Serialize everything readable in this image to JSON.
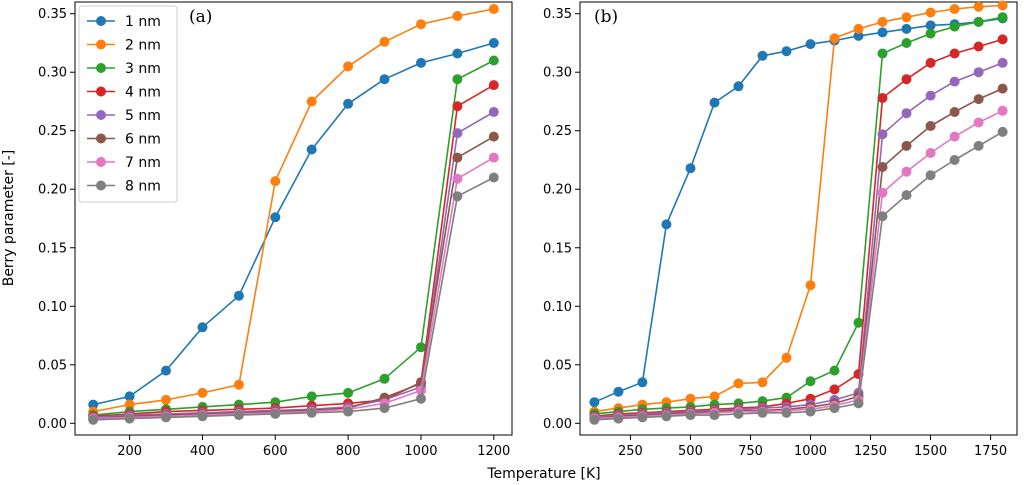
{
  "figure": {
    "xlabel": "Temperature [K]",
    "ylabel": "Berry parameter [-]"
  },
  "series_meta": [
    {
      "name": "1 nm",
      "color": "#1f77b4"
    },
    {
      "name": "2 nm",
      "color": "#ff7f0e"
    },
    {
      "name": "3 nm",
      "color": "#2ca02c"
    },
    {
      "name": "4 nm",
      "color": "#d62728"
    },
    {
      "name": "5 nm",
      "color": "#9467bd"
    },
    {
      "name": "6 nm",
      "color": "#8c564b"
    },
    {
      "name": "7 nm",
      "color": "#e377c2"
    },
    {
      "name": "8 nm",
      "color": "#7f7f7f"
    }
  ],
  "chart_data": [
    {
      "type": "line",
      "title": "(a)",
      "xlabel": "Temperature [K]",
      "ylabel": "Berry parameter [-]",
      "xlim": [
        50,
        1250
      ],
      "ylim": [
        -0.01,
        0.36
      ],
      "xticks": [
        200,
        400,
        600,
        800,
        1000,
        1200
      ],
      "yticks": [
        0.0,
        0.05,
        0.1,
        0.15,
        0.2,
        0.25,
        0.3,
        0.35
      ],
      "ytick_labels": [
        "0.00",
        "0.05",
        "0.10",
        "0.15",
        "0.20",
        "0.25",
        "0.30",
        "0.35"
      ],
      "legend": "top-left",
      "x": [
        100,
        200,
        300,
        400,
        500,
        600,
        700,
        800,
        900,
        1000,
        1100,
        1200
      ],
      "series": [
        {
          "name": "1 nm",
          "values": [
            0.016,
            0.023,
            0.045,
            0.082,
            0.109,
            0.176,
            0.234,
            0.273,
            0.294,
            0.308,
            0.316,
            0.325
          ]
        },
        {
          "name": "2 nm",
          "values": [
            0.01,
            0.016,
            0.02,
            0.026,
            0.033,
            0.207,
            0.275,
            0.305,
            0.326,
            0.341,
            0.348,
            0.354
          ]
        },
        {
          "name": "3 nm",
          "values": [
            0.007,
            0.01,
            0.012,
            0.014,
            0.016,
            0.018,
            0.023,
            0.026,
            0.038,
            0.065,
            0.294,
            0.31
          ]
        },
        {
          "name": "4 nm",
          "values": [
            0.006,
            0.008,
            0.01,
            0.011,
            0.012,
            0.013,
            0.015,
            0.017,
            0.02,
            0.035,
            0.271,
            0.289
          ]
        },
        {
          "name": "5 nm",
          "values": [
            0.005,
            0.007,
            0.008,
            0.009,
            0.01,
            0.011,
            0.012,
            0.014,
            0.02,
            0.031,
            0.248,
            0.266
          ]
        },
        {
          "name": "6 nm",
          "values": [
            0.004,
            0.006,
            0.007,
            0.008,
            0.009,
            0.01,
            0.011,
            0.013,
            0.022,
            0.034,
            0.227,
            0.245
          ]
        },
        {
          "name": "7 nm",
          "values": [
            0.004,
            0.005,
            0.006,
            0.007,
            0.008,
            0.009,
            0.01,
            0.012,
            0.017,
            0.028,
            0.209,
            0.227
          ]
        },
        {
          "name": "8 nm",
          "values": [
            0.003,
            0.004,
            0.005,
            0.006,
            0.007,
            0.008,
            0.009,
            0.01,
            0.013,
            0.021,
            0.194,
            0.21
          ]
        }
      ]
    },
    {
      "type": "line",
      "title": "(b)",
      "xlabel": "Temperature [K]",
      "ylabel": "",
      "xlim": [
        40,
        1860
      ],
      "ylim": [
        -0.01,
        0.36
      ],
      "xticks": [
        250,
        500,
        750,
        1000,
        1250,
        1500,
        1750
      ],
      "yticks": [
        0.0,
        0.05,
        0.1,
        0.15,
        0.2,
        0.25,
        0.3,
        0.35
      ],
      "ytick_labels": [
        "0.00",
        "0.05",
        "0.10",
        "0.15",
        "0.20",
        "0.25",
        "0.30",
        "0.35"
      ],
      "legend": "none",
      "x": [
        100,
        200,
        300,
        400,
        500,
        600,
        700,
        800,
        900,
        1000,
        1100,
        1200,
        1300,
        1400,
        1500,
        1600,
        1700,
        1800
      ],
      "series": [
        {
          "name": "1 nm",
          "values": [
            0.018,
            0.027,
            0.035,
            0.17,
            0.218,
            0.274,
            0.288,
            0.314,
            0.318,
            0.324,
            0.327,
            0.331,
            0.334,
            0.337,
            0.34,
            0.341,
            0.343,
            0.346
          ]
        },
        {
          "name": "2 nm",
          "values": [
            0.01,
            0.013,
            0.016,
            0.018,
            0.021,
            0.023,
            0.034,
            0.035,
            0.056,
            0.118,
            0.329,
            0.337,
            0.343,
            0.347,
            0.351,
            0.354,
            0.356,
            0.357
          ]
        },
        {
          "name": "3 nm",
          "values": [
            0.008,
            0.01,
            0.012,
            0.013,
            0.014,
            0.016,
            0.017,
            0.019,
            0.022,
            0.036,
            0.045,
            0.086,
            0.316,
            0.325,
            0.333,
            0.339,
            0.343,
            0.347
          ]
        },
        {
          "name": "4 nm",
          "values": [
            0.006,
            0.008,
            0.009,
            0.01,
            0.011,
            0.012,
            0.013,
            0.014,
            0.017,
            0.021,
            0.029,
            0.042,
            0.278,
            0.294,
            0.308,
            0.316,
            0.322,
            0.328
          ]
        },
        {
          "name": "5 nm",
          "values": [
            0.005,
            0.007,
            0.008,
            0.009,
            0.01,
            0.011,
            0.012,
            0.013,
            0.014,
            0.016,
            0.02,
            0.026,
            0.247,
            0.265,
            0.28,
            0.292,
            0.3,
            0.308
          ]
        },
        {
          "name": "6 nm",
          "values": [
            0.004,
            0.006,
            0.007,
            0.008,
            0.009,
            0.01,
            0.011,
            0.011,
            0.012,
            0.014,
            0.017,
            0.023,
            0.219,
            0.237,
            0.254,
            0.266,
            0.277,
            0.286
          ]
        },
        {
          "name": "7 nm",
          "values": [
            0.004,
            0.005,
            0.006,
            0.007,
            0.008,
            0.009,
            0.01,
            0.01,
            0.011,
            0.012,
            0.015,
            0.02,
            0.197,
            0.215,
            0.231,
            0.245,
            0.257,
            0.267
          ]
        },
        {
          "name": "8 nm",
          "values": [
            0.003,
            0.004,
            0.005,
            0.006,
            0.007,
            0.007,
            0.008,
            0.009,
            0.009,
            0.01,
            0.013,
            0.017,
            0.177,
            0.195,
            0.212,
            0.225,
            0.237,
            0.249
          ]
        }
      ]
    }
  ]
}
